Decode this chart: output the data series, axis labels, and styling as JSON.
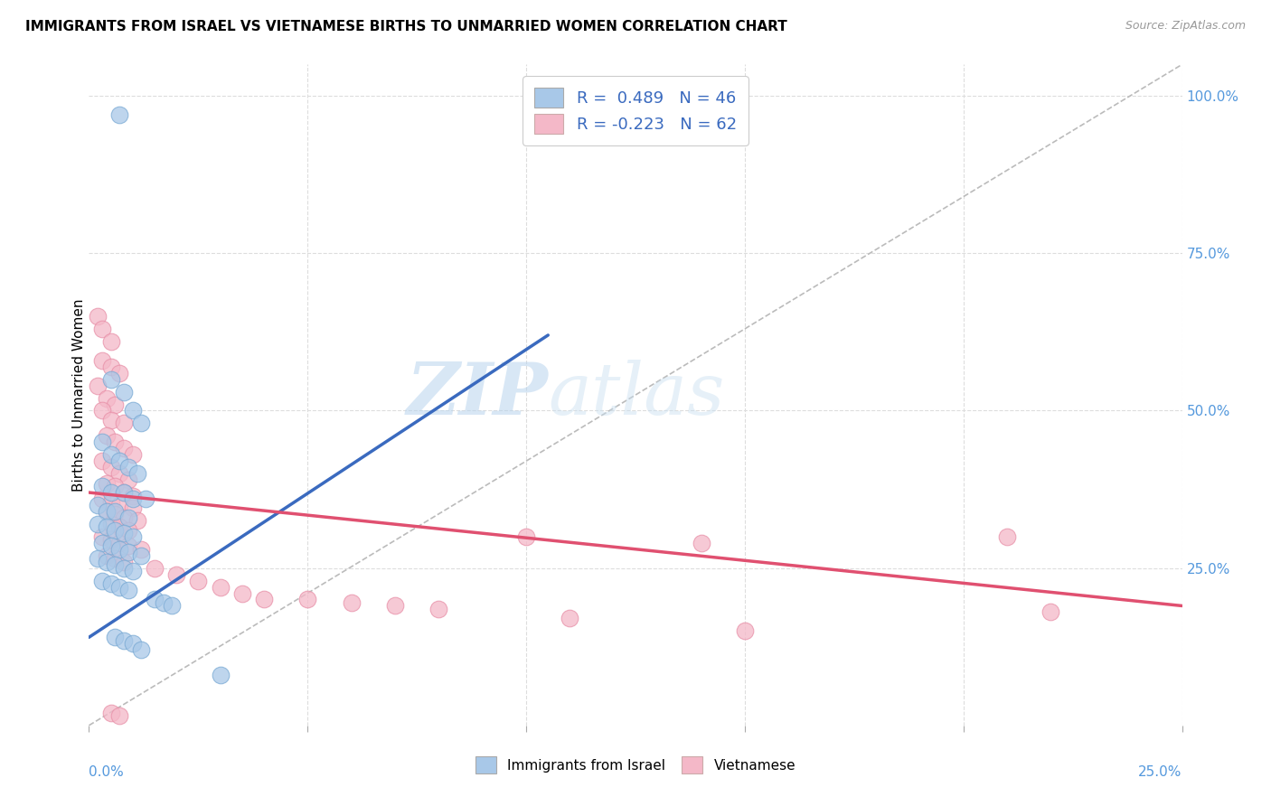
{
  "title": "IMMIGRANTS FROM ISRAEL VS VIETNAMESE BIRTHS TO UNMARRIED WOMEN CORRELATION CHART",
  "source": "Source: ZipAtlas.com",
  "ylabel": "Births to Unmarried Women",
  "legend_r1": "R =  0.489   N = 46",
  "legend_r2": "R = -0.223   N = 62",
  "blue_color": "#a8c8e8",
  "blue_edge_color": "#7aaad4",
  "pink_color": "#f4b8c8",
  "pink_edge_color": "#e890a8",
  "blue_line_color": "#3a6abf",
  "pink_line_color": "#e05070",
  "watermark_zip": "ZIP",
  "watermark_atlas": "atlas",
  "blue_scatter": [
    [
      0.7,
      97.0
    ],
    [
      0.5,
      55.0
    ],
    [
      0.8,
      53.0
    ],
    [
      1.0,
      50.0
    ],
    [
      1.2,
      48.0
    ],
    [
      0.3,
      45.0
    ],
    [
      0.5,
      43.0
    ],
    [
      0.7,
      42.0
    ],
    [
      0.9,
      41.0
    ],
    [
      1.1,
      40.0
    ],
    [
      0.3,
      38.0
    ],
    [
      0.5,
      37.0
    ],
    [
      0.8,
      37.0
    ],
    [
      1.0,
      36.0
    ],
    [
      1.3,
      36.0
    ],
    [
      0.2,
      35.0
    ],
    [
      0.4,
      34.0
    ],
    [
      0.6,
      34.0
    ],
    [
      0.9,
      33.0
    ],
    [
      0.2,
      32.0
    ],
    [
      0.4,
      31.5
    ],
    [
      0.6,
      31.0
    ],
    [
      0.8,
      30.5
    ],
    [
      1.0,
      30.0
    ],
    [
      0.3,
      29.0
    ],
    [
      0.5,
      28.5
    ],
    [
      0.7,
      28.0
    ],
    [
      0.9,
      27.5
    ],
    [
      1.2,
      27.0
    ],
    [
      0.2,
      26.5
    ],
    [
      0.4,
      26.0
    ],
    [
      0.6,
      25.5
    ],
    [
      0.8,
      25.0
    ],
    [
      1.0,
      24.5
    ],
    [
      0.3,
      23.0
    ],
    [
      0.5,
      22.5
    ],
    [
      0.7,
      22.0
    ],
    [
      0.9,
      21.5
    ],
    [
      1.5,
      20.0
    ],
    [
      1.7,
      19.5
    ],
    [
      1.9,
      19.0
    ],
    [
      0.6,
      14.0
    ],
    [
      0.8,
      13.5
    ],
    [
      1.0,
      13.0
    ],
    [
      1.2,
      12.0
    ],
    [
      3.0,
      8.0
    ]
  ],
  "pink_scatter": [
    [
      0.2,
      65.0
    ],
    [
      0.3,
      63.0
    ],
    [
      0.5,
      61.0
    ],
    [
      0.3,
      58.0
    ],
    [
      0.5,
      57.0
    ],
    [
      0.7,
      56.0
    ],
    [
      0.2,
      54.0
    ],
    [
      0.4,
      52.0
    ],
    [
      0.6,
      51.0
    ],
    [
      0.3,
      50.0
    ],
    [
      0.5,
      48.5
    ],
    [
      0.8,
      48.0
    ],
    [
      0.4,
      46.0
    ],
    [
      0.6,
      45.0
    ],
    [
      0.8,
      44.0
    ],
    [
      1.0,
      43.0
    ],
    [
      0.3,
      42.0
    ],
    [
      0.5,
      41.0
    ],
    [
      0.7,
      40.0
    ],
    [
      0.9,
      39.0
    ],
    [
      0.4,
      38.5
    ],
    [
      0.6,
      38.0
    ],
    [
      0.8,
      37.0
    ],
    [
      1.0,
      36.5
    ],
    [
      0.3,
      36.0
    ],
    [
      0.5,
      35.5
    ],
    [
      0.7,
      35.0
    ],
    [
      1.0,
      34.5
    ],
    [
      0.4,
      34.0
    ],
    [
      0.6,
      33.5
    ],
    [
      0.8,
      33.0
    ],
    [
      1.1,
      32.5
    ],
    [
      0.5,
      32.0
    ],
    [
      0.7,
      31.5
    ],
    [
      0.9,
      31.0
    ],
    [
      0.3,
      30.0
    ],
    [
      0.5,
      29.5
    ],
    [
      0.7,
      29.0
    ],
    [
      0.9,
      28.5
    ],
    [
      1.2,
      28.0
    ],
    [
      0.4,
      27.0
    ],
    [
      0.6,
      26.5
    ],
    [
      0.8,
      26.0
    ],
    [
      1.5,
      25.0
    ],
    [
      2.0,
      24.0
    ],
    [
      2.5,
      23.0
    ],
    [
      3.0,
      22.0
    ],
    [
      3.5,
      21.0
    ],
    [
      4.0,
      20.0
    ],
    [
      5.0,
      20.0
    ],
    [
      6.0,
      19.5
    ],
    [
      7.0,
      19.0
    ],
    [
      8.0,
      18.5
    ],
    [
      10.0,
      30.0
    ],
    [
      11.0,
      17.0
    ],
    [
      14.0,
      29.0
    ],
    [
      15.0,
      15.0
    ],
    [
      21.0,
      30.0
    ],
    [
      22.0,
      18.0
    ],
    [
      0.5,
      2.0
    ],
    [
      0.7,
      1.5
    ]
  ],
  "xlim": [
    0.0,
    25.0
  ],
  "ylim": [
    0.0,
    105.0
  ],
  "x_ticks": [
    0.0,
    5.0,
    10.0,
    15.0,
    20.0,
    25.0
  ],
  "y_right_ticks": [
    0.0,
    25.0,
    50.0,
    75.0,
    100.0
  ],
  "y_right_labels": [
    "",
    "25.0%",
    "50.0%",
    "75.0%",
    "100.0%"
  ],
  "blue_line_x": [
    0.0,
    10.5
  ],
  "blue_line_y": [
    14.0,
    62.0
  ],
  "pink_line_x": [
    0.0,
    25.0
  ],
  "pink_line_y": [
    37.0,
    19.0
  ],
  "diag_line_x": [
    0.0,
    25.0
  ],
  "diag_line_y": [
    0.0,
    105.0
  ]
}
